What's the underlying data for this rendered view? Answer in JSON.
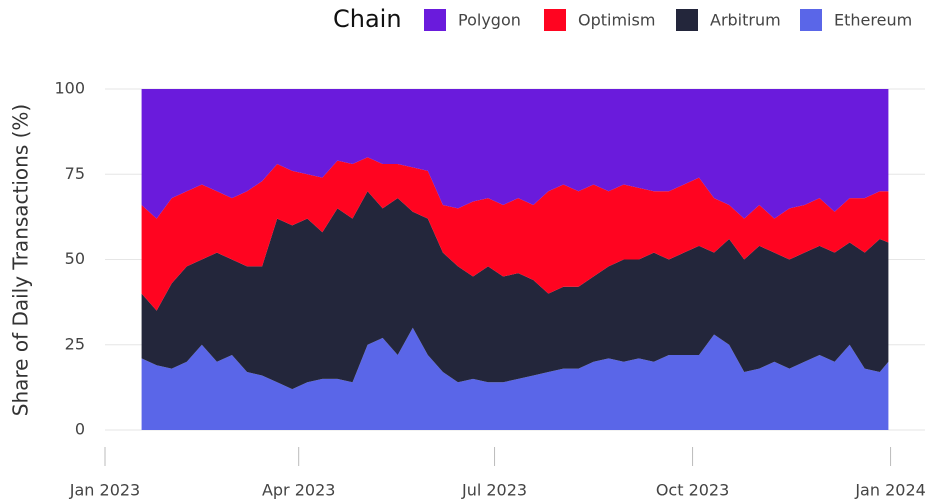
{
  "chart_data": {
    "type": "stacked_area",
    "y_label": "Share of Daily Transactions (%)",
    "legend_title": "Chain",
    "legend": "top-right",
    "grid": true,
    "ylim": [
      0,
      100
    ],
    "yticks": [
      0,
      25,
      50,
      75,
      100
    ],
    "xlim": [
      "2023-01-01",
      "2024-01-17"
    ],
    "xticks": [
      {
        "value": "2023-01-01",
        "label": "Jan 2023"
      },
      {
        "value": "2023-04-01",
        "label": "Apr 2023"
      },
      {
        "value": "2023-07-01",
        "label": "Jul 2023"
      },
      {
        "value": "2023-10-01",
        "label": "Oct 2023"
      },
      {
        "value": "2024-01-01",
        "label": "Jan 2024"
      }
    ],
    "x": [
      "2023-01-18",
      "2023-01-25",
      "2023-02-01",
      "2023-02-08",
      "2023-02-15",
      "2023-02-22",
      "2023-03-01",
      "2023-03-08",
      "2023-03-15",
      "2023-03-22",
      "2023-03-29",
      "2023-04-05",
      "2023-04-12",
      "2023-04-19",
      "2023-04-26",
      "2023-05-03",
      "2023-05-10",
      "2023-05-17",
      "2023-05-24",
      "2023-05-31",
      "2023-06-07",
      "2023-06-14",
      "2023-06-21",
      "2023-06-28",
      "2023-07-05",
      "2023-07-12",
      "2023-07-19",
      "2023-07-26",
      "2023-08-02",
      "2023-08-09",
      "2023-08-16",
      "2023-08-23",
      "2023-08-30",
      "2023-09-06",
      "2023-09-13",
      "2023-09-20",
      "2023-09-27",
      "2023-10-04",
      "2023-10-11",
      "2023-10-18",
      "2023-10-25",
      "2023-11-01",
      "2023-11-08",
      "2023-11-15",
      "2023-11-22",
      "2023-11-29",
      "2023-12-06",
      "2023-12-13",
      "2023-12-20",
      "2023-12-27",
      "2023-12-31"
    ],
    "series": [
      {
        "name": "Polygon",
        "color": "#6a1bdc",
        "values": [
          34,
          38,
          32,
          30,
          28,
          30,
          32,
          30,
          27,
          22,
          24,
          25,
          26,
          21,
          22,
          20,
          22,
          22,
          23,
          24,
          34,
          35,
          33,
          32,
          34,
          32,
          34,
          30,
          28,
          30,
          28,
          30,
          28,
          29,
          30,
          30,
          28,
          26,
          32,
          34,
          38,
          34,
          38,
          35,
          34,
          32,
          36,
          32,
          32,
          30,
          30
        ]
      },
      {
        "name": "Optimism",
        "color": "#ff0420",
        "values": [
          26,
          27,
          25,
          22,
          22,
          18,
          18,
          22,
          25,
          16,
          16,
          13,
          16,
          14,
          16,
          10,
          13,
          10,
          13,
          14,
          14,
          17,
          22,
          20,
          21,
          22,
          22,
          30,
          30,
          28,
          27,
          22,
          22,
          21,
          18,
          20,
          20,
          20,
          16,
          10,
          12,
          12,
          10,
          15,
          14,
          14,
          12,
          13,
          16,
          14,
          15
        ]
      },
      {
        "name": "Arbitrum",
        "color": "#23263b",
        "values": [
          19,
          16,
          25,
          28,
          25,
          32,
          28,
          31,
          32,
          48,
          48,
          48,
          43,
          50,
          48,
          45,
          38,
          46,
          34,
          40,
          35,
          34,
          30,
          34,
          31,
          31,
          28,
          23,
          24,
          24,
          25,
          27,
          30,
          29,
          32,
          28,
          30,
          32,
          24,
          31,
          33,
          36,
          32,
          32,
          32,
          32,
          32,
          30,
          34,
          39,
          35
        ]
      },
      {
        "name": "Ethereum",
        "color": "#5a66e8",
        "values": [
          21,
          19,
          18,
          20,
          25,
          20,
          22,
          17,
          16,
          14,
          12,
          14,
          15,
          15,
          14,
          25,
          27,
          22,
          30,
          22,
          17,
          14,
          15,
          14,
          14,
          15,
          16,
          17,
          18,
          18,
          20,
          21,
          20,
          21,
          20,
          22,
          22,
          22,
          28,
          25,
          17,
          18,
          20,
          18,
          20,
          22,
          20,
          25,
          18,
          17,
          20
        ]
      }
    ]
  }
}
